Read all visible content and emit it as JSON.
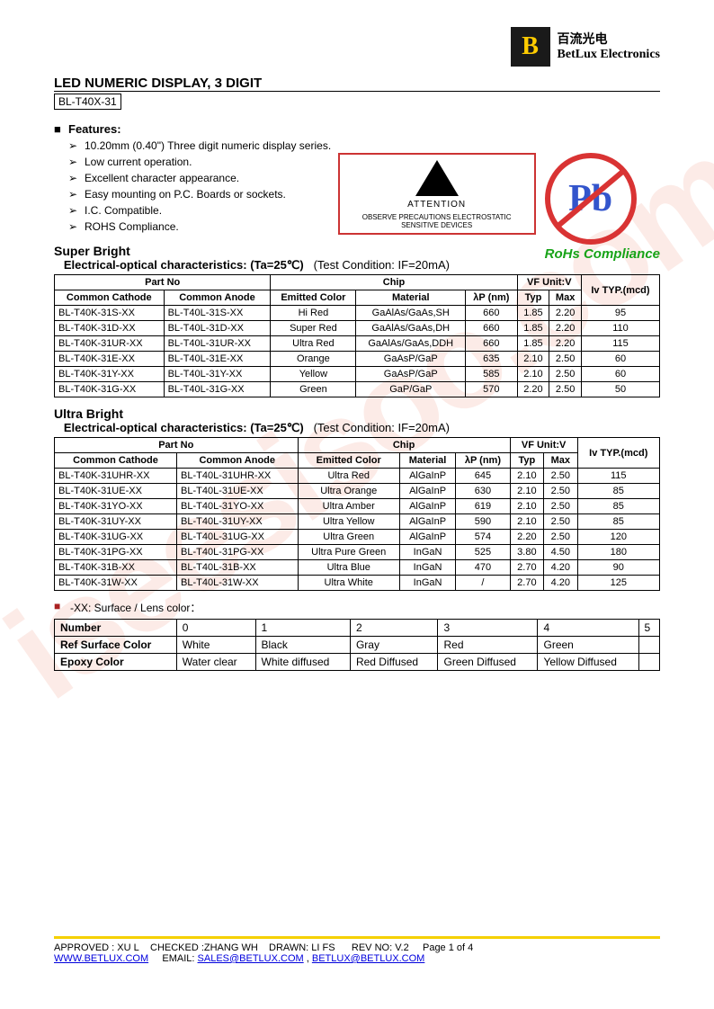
{
  "watermark": "iseesisoo.com",
  "company": {
    "cn": "百流光电",
    "en": "BetLux Electronics",
    "logo_letter": "B"
  },
  "title": "LED NUMERIC DISPLAY, 3 DIGIT",
  "part_no": "BL-T40X-31",
  "features_label": "Features:",
  "features": [
    "10.20mm (0.40\") Three digit numeric display series.",
    "Low current operation.",
    "Excellent character appearance.",
    "Easy mounting on P.C. Boards or sockets.",
    "I.C. Compatible.",
    "ROHS Compliance."
  ],
  "attention_title": "ATTENTION",
  "attention_text": "OBSERVE PRECAUTIONS ELECTROSTATIC SENSITIVE DEVICES",
  "rohs_symbol": "Pb",
  "rohs_label": "RoHs Compliance",
  "table1": {
    "section": "Super Bright",
    "subtitle": "Electrical-optical characteristics: (Ta=25℃)",
    "condition": "(Test Condition: IF=20mA)",
    "headers": {
      "partno": "Part No",
      "common_cathode": "Common Cathode",
      "common_anode": "Common Anode",
      "chip": "Chip",
      "emitted_color": "Emitted Color",
      "material": "Material",
      "lambda": "λP (nm)",
      "vf": "VF Unit:V",
      "typ": "Typ",
      "max": "Max",
      "iv": "Iv TYP.(mcd)"
    },
    "rows": [
      {
        "cc": "BL-T40K-31S-XX",
        "ca": "BL-T40L-31S-XX",
        "color": "Hi Red",
        "mat": "GaAlAs/GaAs,SH",
        "lp": "660",
        "typ": "1.85",
        "max": "2.20",
        "iv": "95"
      },
      {
        "cc": "BL-T40K-31D-XX",
        "ca": "BL-T40L-31D-XX",
        "color": "Super Red",
        "mat": "GaAlAs/GaAs,DH",
        "lp": "660",
        "typ": "1.85",
        "max": "2.20",
        "iv": "110"
      },
      {
        "cc": "BL-T40K-31UR-XX",
        "ca": "BL-T40L-31UR-XX",
        "color": "Ultra Red",
        "mat": "GaAlAs/GaAs,DDH",
        "lp": "660",
        "typ": "1.85",
        "max": "2.20",
        "iv": "115"
      },
      {
        "cc": "BL-T40K-31E-XX",
        "ca": "BL-T40L-31E-XX",
        "color": "Orange",
        "mat": "GaAsP/GaP",
        "lp": "635",
        "typ": "2.10",
        "max": "2.50",
        "iv": "60"
      },
      {
        "cc": "BL-T40K-31Y-XX",
        "ca": "BL-T40L-31Y-XX",
        "color": "Yellow",
        "mat": "GaAsP/GaP",
        "lp": "585",
        "typ": "2.10",
        "max": "2.50",
        "iv": "60"
      },
      {
        "cc": "BL-T40K-31G-XX",
        "ca": "BL-T40L-31G-XX",
        "color": "Green",
        "mat": "GaP/GaP",
        "lp": "570",
        "typ": "2.20",
        "max": "2.50",
        "iv": "50"
      }
    ]
  },
  "table2": {
    "section": "Ultra Bright",
    "subtitle": "Electrical-optical characteristics: (Ta=25℃)",
    "condition": "(Test Condition: IF=20mA)",
    "headers": {
      "partno": "Part No",
      "common_cathode": "Common Cathode",
      "common_anode": "Common Anode",
      "chip": "Chip",
      "emitted_color": "Emitted Color",
      "material": "Material",
      "lambda": "λP (nm)",
      "vf": "VF Unit:V",
      "typ": "Typ",
      "max": "Max",
      "iv": "Iv TYP.(mcd)"
    },
    "rows": [
      {
        "cc": "BL-T40K-31UHR-XX",
        "ca": "BL-T40L-31UHR-XX",
        "color": "Ultra Red",
        "mat": "AlGaInP",
        "lp": "645",
        "typ": "2.10",
        "max": "2.50",
        "iv": "115"
      },
      {
        "cc": "BL-T40K-31UE-XX",
        "ca": "BL-T40L-31UE-XX",
        "color": "Ultra Orange",
        "mat": "AlGaInP",
        "lp": "630",
        "typ": "2.10",
        "max": "2.50",
        "iv": "85"
      },
      {
        "cc": "BL-T40K-31YO-XX",
        "ca": "BL-T40L-31YO-XX",
        "color": "Ultra Amber",
        "mat": "AlGaInP",
        "lp": "619",
        "typ": "2.10",
        "max": "2.50",
        "iv": "85"
      },
      {
        "cc": "BL-T40K-31UY-XX",
        "ca": "BL-T40L-31UY-XX",
        "color": "Ultra Yellow",
        "mat": "AlGaInP",
        "lp": "590",
        "typ": "2.10",
        "max": "2.50",
        "iv": "85"
      },
      {
        "cc": "BL-T40K-31UG-XX",
        "ca": "BL-T40L-31UG-XX",
        "color": "Ultra Green",
        "mat": "AlGaInP",
        "lp": "574",
        "typ": "2.20",
        "max": "2.50",
        "iv": "120"
      },
      {
        "cc": "BL-T40K-31PG-XX",
        "ca": "BL-T40L-31PG-XX",
        "color": "Ultra Pure Green",
        "mat": "InGaN",
        "lp": "525",
        "typ": "3.80",
        "max": "4.50",
        "iv": "180"
      },
      {
        "cc": "BL-T40K-31B-XX",
        "ca": "BL-T40L-31B-XX",
        "color": "Ultra Blue",
        "mat": "InGaN",
        "lp": "470",
        "typ": "2.70",
        "max": "4.20",
        "iv": "90"
      },
      {
        "cc": "BL-T40K-31W-XX",
        "ca": "BL-T40L-31W-XX",
        "color": "Ultra White",
        "mat": "InGaN",
        "lp": "/",
        "typ": "2.70",
        "max": "4.20",
        "iv": "125"
      }
    ]
  },
  "lens_note": "-XX: Surface / Lens color：",
  "lens_table": {
    "row_labels": [
      "Number",
      "Ref Surface Color",
      "Epoxy Color"
    ],
    "cols": [
      "0",
      "1",
      "2",
      "3",
      "4",
      "5"
    ],
    "surface": [
      "White",
      "Black",
      "Gray",
      "Red",
      "Green",
      ""
    ],
    "epoxy": [
      "Water clear",
      "White diffused",
      "Red Diffused",
      "Green Diffused",
      "Yellow Diffused",
      ""
    ]
  },
  "footer": {
    "approved": "APPROVED : XU L",
    "checked": "CHECKED :ZHANG WH",
    "drawn": "DRAWN: LI FS",
    "rev": "REV NO: V.2",
    "page": "Page 1 of 4",
    "www": "WWW.BETLUX.COM",
    "email_label": "EMAIL:",
    "email1": "SALES@BETLUX.COM",
    "sep": ",",
    "email2": "BETLUX@BETLUX.COM"
  }
}
